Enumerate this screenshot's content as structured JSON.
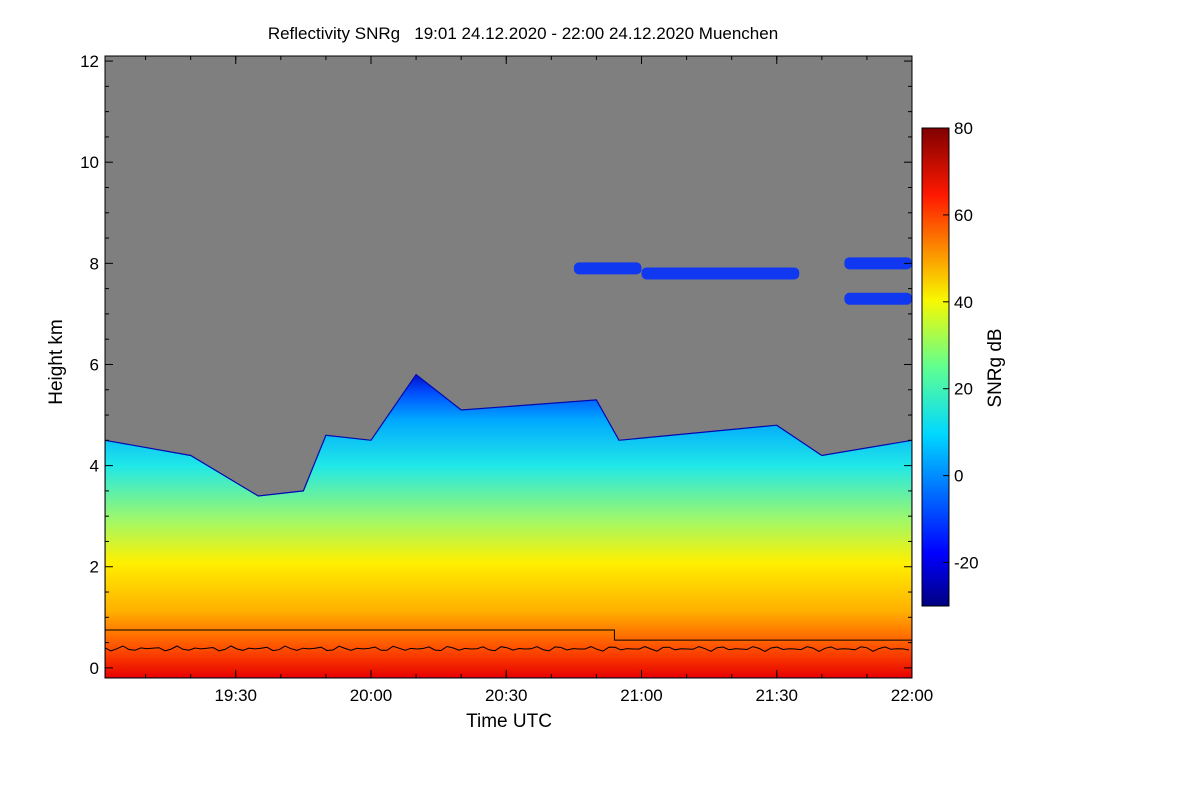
{
  "chart_data": {
    "type": "heatmap",
    "title": "Reflectivity SNRg   19:01 24.12.2020 - 22:00 24.12.2020 Muenchen",
    "xlabel": "Time UTC",
    "ylabel": "Height km",
    "colorbar_label": "SNRg dB",
    "xlim": [
      "19:01",
      "22:00"
    ],
    "ylim": [
      -0.2,
      12.1
    ],
    "x_ticks": [
      "19:30",
      "20:00",
      "20:30",
      "21:00",
      "21:30",
      "22:00"
    ],
    "y_ticks": [
      "0",
      "2",
      "4",
      "6",
      "8",
      "10",
      "12"
    ],
    "colorbar_range": [
      -30,
      80
    ],
    "colorbar_ticks": [
      "-20",
      "0",
      "20",
      "40",
      "60",
      "80"
    ],
    "colormap": "jet",
    "background_color": "#7f7f7f",
    "cloud_top_km": [
      {
        "time": "19:01",
        "height": 4.5
      },
      {
        "time": "19:20",
        "height": 4.2
      },
      {
        "time": "19:35",
        "height": 3.4
      },
      {
        "time": "19:45",
        "height": 3.5
      },
      {
        "time": "19:50",
        "height": 4.6
      },
      {
        "time": "20:00",
        "height": 4.5
      },
      {
        "time": "20:10",
        "height": 5.8
      },
      {
        "time": "20:20",
        "height": 5.1
      },
      {
        "time": "20:50",
        "height": 5.3
      },
      {
        "time": "20:55",
        "height": 4.5
      },
      {
        "time": "21:30",
        "height": 4.8
      },
      {
        "time": "21:40",
        "height": 4.2
      },
      {
        "time": "22:00",
        "height": 4.5
      }
    ],
    "upper_cloud_layers_km": [
      {
        "start": "20:45",
        "end": "21:00",
        "height": 7.9
      },
      {
        "start": "21:00",
        "end": "21:35",
        "height": 7.8
      },
      {
        "start": "21:45",
        "end": "22:00",
        "height": 8.0
      },
      {
        "start": "21:45",
        "end": "22:00",
        "height": 7.3
      }
    ],
    "overlay_lines_km": [
      {
        "name": "",
        "segments": [
          {
            "start": "19:01",
            "end": "20:54",
            "height": 0.75
          },
          {
            "start": "20:54",
            "end": "22:00",
            "height": 0.55
          }
        ]
      },
      {
        "name": "",
        "approx_height": 0.38
      }
    ]
  }
}
